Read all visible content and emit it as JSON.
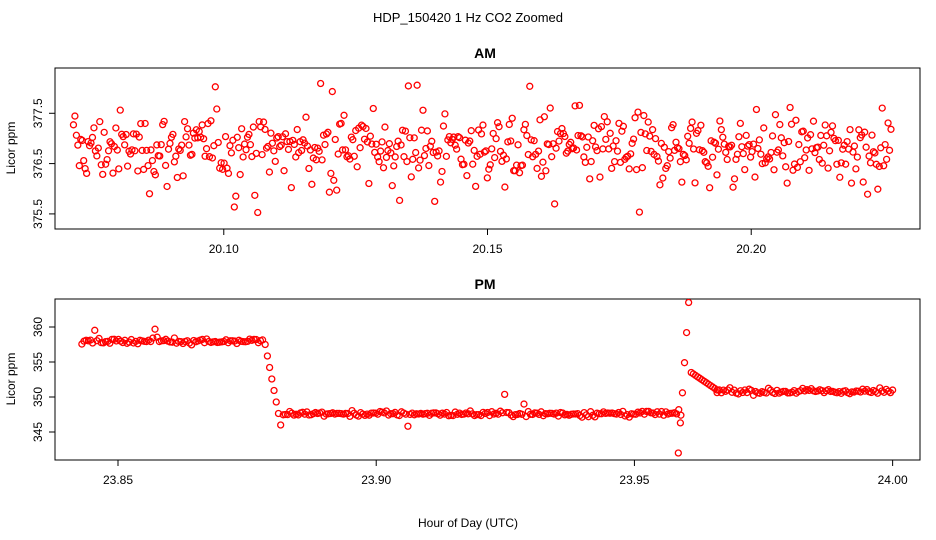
{
  "figure": {
    "title": "HDP_150420  1 Hz CO2 Zoomed",
    "xlabel": "Hour of Day (UTC)"
  },
  "chart_data": [
    {
      "type": "scatter",
      "title": "AM",
      "ylabel": "Licor ppm",
      "xlim": [
        20.068,
        20.232
      ],
      "ylim": [
        375.2,
        378.4
      ],
      "xticks": [
        20.1,
        20.15,
        20.2
      ],
      "xtick_labels": [
        "20.10",
        "20.15",
        "20.20"
      ],
      "yticks": [
        375.5,
        376.5,
        377.5
      ],
      "ytick_labels": [
        "375.5",
        "376.5",
        "377.5"
      ],
      "series_color": "#ff0000",
      "sampling": "1 Hz",
      "series": {
        "name": "CO2",
        "x_start": 20.0715,
        "x_end": 20.2265,
        "n_points": 560,
        "mean": 376.8,
        "typical_range": [
          375.8,
          377.8
        ],
        "min": 375.3,
        "max": 378.1
      }
    },
    {
      "type": "scatter",
      "title": "PM",
      "ylabel": "Licor ppm",
      "xlim": [
        23.8378,
        24.0053
      ],
      "ylim": [
        341,
        364
      ],
      "xticks": [
        23.85,
        23.9,
        23.95,
        24.0
      ],
      "xtick_labels": [
        "23.85",
        "23.90",
        "23.95",
        "24.00"
      ],
      "yticks": [
        345,
        350,
        355,
        360
      ],
      "ytick_labels": [
        "345",
        "350",
        "355",
        "360"
      ],
      "series_color": "#ff0000",
      "sampling": "1 Hz",
      "series": {
        "name": "CO2",
        "segments": [
          {
            "x_start": 23.843,
            "x_end": 23.878,
            "level": 358.0
          },
          {
            "x_start": 23.8785,
            "x_end": 23.8815,
            "level_from": 357.5,
            "level_to": 346.0
          },
          {
            "x_start": 23.882,
            "x_end": 23.959,
            "level": 347.6
          },
          {
            "x_start": 23.9585,
            "x_end": 23.9605,
            "level_from": 342.0,
            "level_to": 363.5
          },
          {
            "x_start": 23.961,
            "x_end": 23.966,
            "level_from": 353.5,
            "level_to": 351.0
          },
          {
            "x_start": 23.966,
            "x_end": 24.0,
            "level": 350.8
          }
        ]
      }
    }
  ]
}
